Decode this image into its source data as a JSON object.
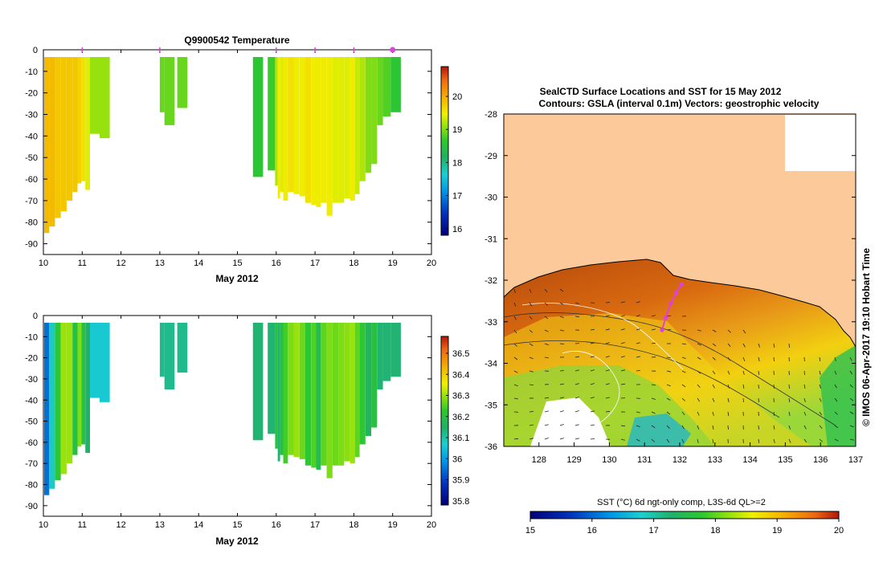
{
  "chart_data": [
    {
      "type": "heatmap",
      "title": "Q9900542  Temperature",
      "xlabel": "May 2012",
      "ylabel": "",
      "xlim": [
        10,
        20
      ],
      "ylim": [
        -95,
        0
      ],
      "xticks": [
        "10",
        "11",
        "12",
        "13",
        "14",
        "15",
        "16",
        "17",
        "18",
        "19",
        "20"
      ],
      "yticks": [
        "0",
        "-10",
        "-20",
        "-30",
        "-40",
        "-50",
        "-60",
        "-70",
        "-80",
        "-90"
      ],
      "colorbar": {
        "min": 15.8,
        "max": 20.9,
        "ticks": [
          "16",
          "17",
          "18",
          "19",
          "20"
        ]
      },
      "surface_markers": [
        11,
        13,
        16,
        17,
        18,
        19
      ],
      "profiles": [
        {
          "day": 10.02,
          "depth": -85,
          "value": 19.9
        },
        {
          "day": 10.15,
          "depth": -82,
          "value": 19.9
        },
        {
          "day": 10.3,
          "depth": -78,
          "value": 19.8
        },
        {
          "day": 10.45,
          "depth": -75,
          "value": 19.8
        },
        {
          "day": 10.6,
          "depth": -70,
          "value": 19.8
        },
        {
          "day": 10.75,
          "depth": -66,
          "value": 19.8
        },
        {
          "day": 10.88,
          "depth": -62,
          "value": 19.7
        },
        {
          "day": 10.98,
          "depth": -61,
          "value": 19.6
        },
        {
          "day": 11.08,
          "depth": -65,
          "value": 19.4
        },
        {
          "day": 11.2,
          "depth": -39,
          "value": 19.1
        },
        {
          "day": 11.45,
          "depth": -41,
          "value": 19.1
        },
        {
          "day": 13.0,
          "depth": -29,
          "value": 18.9
        },
        {
          "day": 13.12,
          "depth": -35,
          "value": 18.9
        },
        {
          "day": 13.45,
          "depth": -27,
          "value": 18.9
        },
        {
          "day": 15.4,
          "depth": -59,
          "value": 18.6
        },
        {
          "day": 15.78,
          "depth": -56,
          "value": 18.7
        },
        {
          "day": 15.97,
          "depth": -63,
          "value": 19.2
        },
        {
          "day": 16.04,
          "depth": -69,
          "value": 19.5
        },
        {
          "day": 16.1,
          "depth": -66,
          "value": 19.4
        },
        {
          "day": 16.18,
          "depth": -70,
          "value": 19.5
        },
        {
          "day": 16.3,
          "depth": -66,
          "value": 19.6
        },
        {
          "day": 16.45,
          "depth": -67,
          "value": 19.5
        },
        {
          "day": 16.6,
          "depth": -68,
          "value": 19.5
        },
        {
          "day": 16.75,
          "depth": -71,
          "value": 19.6
        },
        {
          "day": 16.9,
          "depth": -72,
          "value": 19.5
        },
        {
          "day": 17.03,
          "depth": -73,
          "value": 19.5
        },
        {
          "day": 17.15,
          "depth": -71,
          "value": 19.5
        },
        {
          "day": 17.3,
          "depth": -77,
          "value": 19.5
        },
        {
          "day": 17.45,
          "depth": -71,
          "value": 19.4
        },
        {
          "day": 17.6,
          "depth": -71,
          "value": 19.4
        },
        {
          "day": 17.75,
          "depth": -69,
          "value": 19.4
        },
        {
          "day": 17.9,
          "depth": -70,
          "value": 19.5
        },
        {
          "day": 18.03,
          "depth": -67,
          "value": 19.3
        },
        {
          "day": 18.15,
          "depth": -61,
          "value": 19.2
        },
        {
          "day": 18.3,
          "depth": -57,
          "value": 19.0
        },
        {
          "day": 18.45,
          "depth": -53,
          "value": 19.0
        },
        {
          "day": 18.6,
          "depth": -35,
          "value": 18.9
        },
        {
          "day": 18.75,
          "depth": -31,
          "value": 18.8
        },
        {
          "day": 18.95,
          "depth": -29,
          "value": 18.6
        }
      ]
    },
    {
      "type": "heatmap",
      "title": "",
      "xlabel": "May 2012",
      "ylabel": "",
      "xlim": [
        10,
        20
      ],
      "ylim": [
        -95,
        0
      ],
      "xticks": [
        "10",
        "11",
        "12",
        "13",
        "14",
        "15",
        "16",
        "17",
        "18",
        "19",
        "20"
      ],
      "yticks": [
        "0",
        "-10",
        "-20",
        "-30",
        "-40",
        "-50",
        "-60",
        "-70",
        "-80",
        "-90"
      ],
      "colorbar": {
        "min": 35.78,
        "max": 36.58,
        "ticks": [
          "35.8",
          "35.9",
          "36",
          "36.1",
          "36.2",
          "36.3",
          "36.4",
          "36.5"
        ]
      },
      "profiles": [
        {
          "day": 10.02,
          "depth": -85,
          "value": 35.95
        },
        {
          "day": 10.15,
          "depth": -82,
          "value": 36.08
        },
        {
          "day": 10.3,
          "depth": -78,
          "value": 36.22
        },
        {
          "day": 10.45,
          "depth": -75,
          "value": 36.3
        },
        {
          "day": 10.6,
          "depth": -70,
          "value": 36.3
        },
        {
          "day": 10.75,
          "depth": -66,
          "value": 36.2
        },
        {
          "day": 10.88,
          "depth": -62,
          "value": 36.28
        },
        {
          "day": 10.98,
          "depth": -61,
          "value": 36.2
        },
        {
          "day": 11.08,
          "depth": -65,
          "value": 36.15
        },
        {
          "day": 11.2,
          "depth": -39,
          "value": 36.06
        },
        {
          "day": 11.45,
          "depth": -41,
          "value": 36.06
        },
        {
          "day": 13.0,
          "depth": -29,
          "value": 36.12
        },
        {
          "day": 13.12,
          "depth": -35,
          "value": 36.12
        },
        {
          "day": 13.45,
          "depth": -27,
          "value": 36.12
        },
        {
          "day": 15.4,
          "depth": -59,
          "value": 36.14
        },
        {
          "day": 15.78,
          "depth": -56,
          "value": 36.14
        },
        {
          "day": 15.97,
          "depth": -63,
          "value": 36.2
        },
        {
          "day": 16.04,
          "depth": -69,
          "value": 36.14
        },
        {
          "day": 16.1,
          "depth": -66,
          "value": 36.2
        },
        {
          "day": 16.18,
          "depth": -70,
          "value": 36.24
        },
        {
          "day": 16.3,
          "depth": -66,
          "value": 36.28
        },
        {
          "day": 16.45,
          "depth": -67,
          "value": 36.3
        },
        {
          "day": 16.6,
          "depth": -68,
          "value": 36.27
        },
        {
          "day": 16.75,
          "depth": -71,
          "value": 36.22
        },
        {
          "day": 16.9,
          "depth": -72,
          "value": 36.25
        },
        {
          "day": 17.03,
          "depth": -73,
          "value": 36.18
        },
        {
          "day": 17.15,
          "depth": -71,
          "value": 36.26
        },
        {
          "day": 17.3,
          "depth": -77,
          "value": 36.28
        },
        {
          "day": 17.45,
          "depth": -71,
          "value": 36.27
        },
        {
          "day": 17.6,
          "depth": -71,
          "value": 36.28
        },
        {
          "day": 17.75,
          "depth": -69,
          "value": 36.29
        },
        {
          "day": 17.9,
          "depth": -70,
          "value": 36.3
        },
        {
          "day": 18.03,
          "depth": -67,
          "value": 36.26
        },
        {
          "day": 18.15,
          "depth": -61,
          "value": 36.22
        },
        {
          "day": 18.3,
          "depth": -57,
          "value": 36.16
        },
        {
          "day": 18.45,
          "depth": -53,
          "value": 36.2
        },
        {
          "day": 18.6,
          "depth": -35,
          "value": 36.14
        },
        {
          "day": 18.75,
          "depth": -31,
          "value": 36.14
        },
        {
          "day": 18.95,
          "depth": -29,
          "value": 36.14
        }
      ]
    },
    {
      "type": "heatmap",
      "title": "SealCTD Surface Locations and SST for 15 May 2012",
      "subtitle": "Contours: GSLA (interval 0.1m) Vectors: geostrophic velocity",
      "xlabel": "",
      "ylabel": "",
      "xlim": [
        127,
        137
      ],
      "ylim": [
        -36,
        -28
      ],
      "xticks": [
        "128",
        "129",
        "130",
        "131",
        "132",
        "133",
        "134",
        "135",
        "136",
        "137"
      ],
      "yticks": [
        "-28",
        "-29",
        "-30",
        "-31",
        "-32",
        "-33",
        "-34",
        "-35",
        "-36"
      ],
      "colorbar_label": "SST (°C) 6d ngt-only comp, L3S-6d QL>=2",
      "colorbar": {
        "min": 15,
        "max": 20,
        "ticks": [
          "15",
          "16",
          "17",
          "18",
          "19",
          "20"
        ]
      },
      "seal_track": [
        [
          131.5,
          -33.2
        ],
        [
          131.6,
          -32.9
        ],
        [
          131.75,
          -32.55
        ],
        [
          131.9,
          -32.3
        ],
        [
          132.05,
          -32.1
        ]
      ],
      "side_label": "© IMOS 06-Apr-2017 19:10 Hobart Time"
    }
  ],
  "colors": {
    "land": "#fbc99a",
    "marker": "#e040e0",
    "frame": "#000000"
  }
}
